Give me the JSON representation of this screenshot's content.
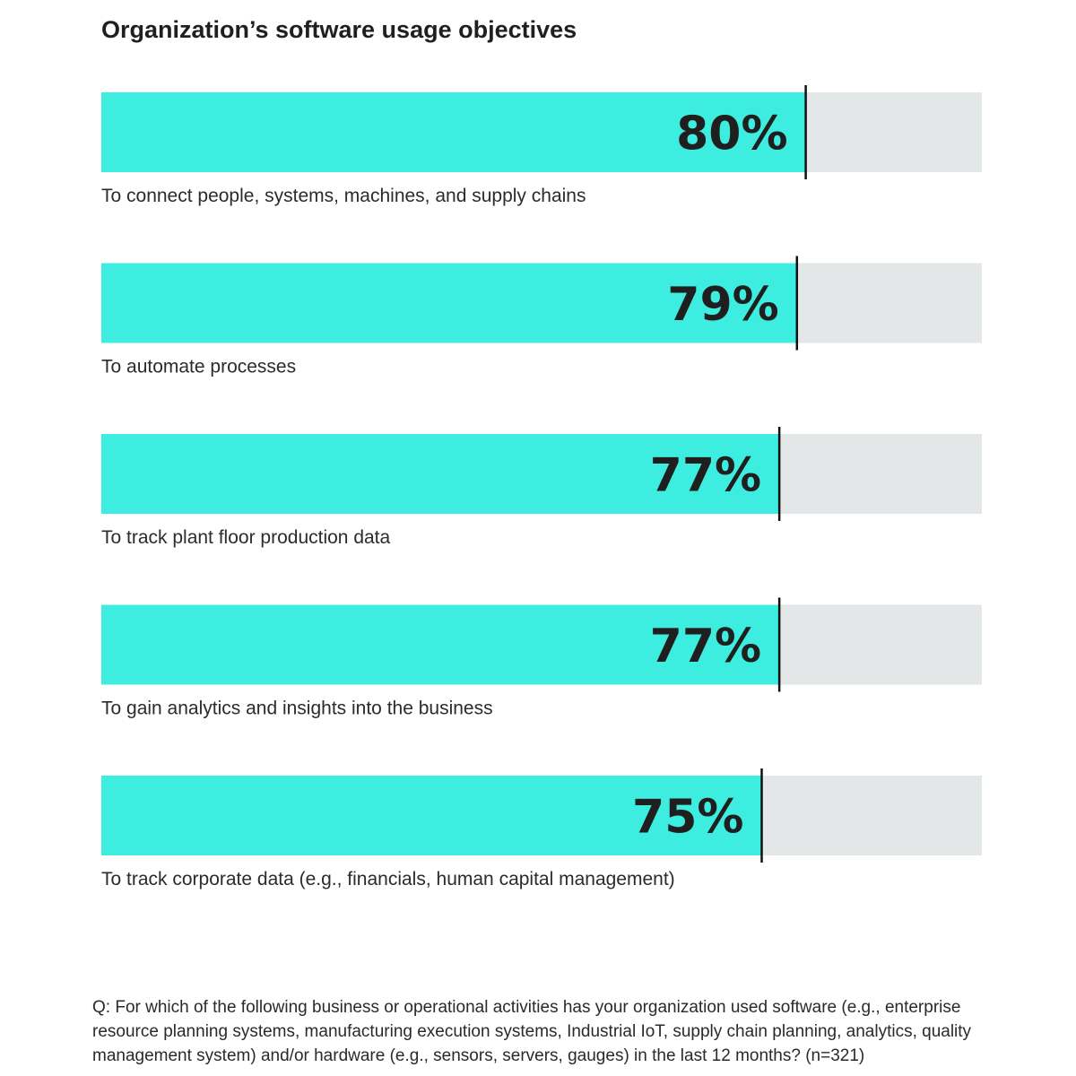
{
  "chart_data": {
    "type": "bar",
    "orientation": "horizontal",
    "title": "Organization’s software usage objectives",
    "categories": [
      "To connect people, systems, machines, and supply chains",
      "To automate processes",
      "To track plant floor production data",
      "To gain analytics and insights into the business",
      "To track corporate data (e.g., financials, human capital management)"
    ],
    "values": [
      80,
      79,
      77,
      77,
      75
    ],
    "value_labels": [
      "80%",
      "79%",
      "77%",
      "77%",
      "75%"
    ],
    "xlim": [
      0,
      100
    ],
    "grid": false,
    "legend": "none",
    "colors": {
      "bar": "#3DEDDF",
      "track": "#E3E7E7",
      "marker": "#111111",
      "value_text": "#1f1f1f",
      "label_text": "#2b2b2b"
    }
  },
  "footnote": "Q: For which of the following business or operational activities has your organization used software (e.g., enterprise resource planning systems, manufacturing execution systems, Industrial IoT, supply chain planning, analytics, quality management system) and/or hardware (e.g., sensors, servers, gauges) in the last 12 months? (n=321)"
}
